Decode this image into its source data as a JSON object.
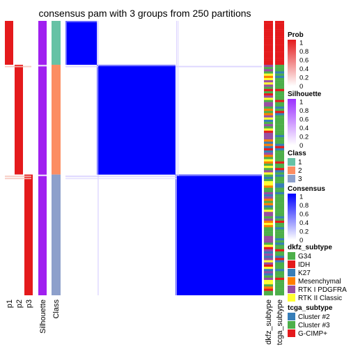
{
  "chart_data": {
    "type": "heatmap",
    "title": "consensus pam with 3 groups from 250 partitions",
    "n_samples": 250,
    "groups": [
      {
        "class": 1,
        "count": 40
      },
      {
        "class": 2,
        "count": 100
      },
      {
        "class": 3,
        "count": 110
      }
    ],
    "column_labels": [
      "p1",
      "p2",
      "p3",
      "Silhouette",
      "Class"
    ],
    "annotation_labels": [
      "dkfz_subtype",
      "tcga_subtype"
    ],
    "legends": {
      "prob": {
        "title": "Prob",
        "ticks": [
          "1",
          "0.8",
          "0.6",
          "0.4",
          "0.2",
          "0"
        ],
        "color_low": "#ffffff",
        "color_high": "#e41a1c"
      },
      "silhouette": {
        "title": "Silhouette",
        "ticks": [
          "1",
          "0.8",
          "0.6",
          "0.4",
          "0.2",
          "0"
        ],
        "color_low": "#ffffff",
        "color_high": "#9b30ff"
      },
      "class": {
        "title": "Class",
        "items": [
          {
            "label": "1",
            "color": "#66c2a5"
          },
          {
            "label": "2",
            "color": "#fc8d62"
          },
          {
            "label": "3",
            "color": "#8da0cb"
          }
        ]
      },
      "consensus": {
        "title": "Consensus",
        "ticks": [
          "1",
          "0.8",
          "0.6",
          "0.4",
          "0.2",
          "0"
        ],
        "color_low": "#ffffff",
        "color_high": "#0000ff"
      },
      "dkfz_subtype": {
        "title": "dkfz_subtype",
        "items": [
          {
            "label": "G34",
            "color": "#4daf4a"
          },
          {
            "label": "IDH",
            "color": "#e41a1c"
          },
          {
            "label": "K27",
            "color": "#377eb8"
          },
          {
            "label": "Mesenchymal",
            "color": "#ff7f00"
          },
          {
            "label": "RTK I PDGFRA",
            "color": "#984ea3"
          },
          {
            "label": "RTK II Classic",
            "color": "#ffff33"
          }
        ]
      },
      "tcga_subtype": {
        "title": "tcga_subtype",
        "items": [
          {
            "label": "Cluster #2",
            "color": "#377eb8"
          },
          {
            "label": "Cluster #3",
            "color": "#4daf4a"
          },
          {
            "label": "G-CIMP+",
            "color": "#e41a1c"
          }
        ]
      }
    }
  }
}
